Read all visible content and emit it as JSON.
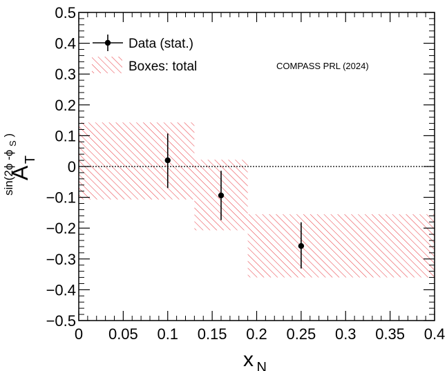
{
  "chart_data": {
    "type": "scatter",
    "xlim": [
      0,
      0.4
    ],
    "ylim": [
      -0.5,
      0.5
    ],
    "x_ticks": [
      "0",
      "0.05",
      "0.1",
      "0.15",
      "0.2",
      "0.25",
      "0.3",
      "0.35",
      "0.4"
    ],
    "y_ticks": [
      "−0.5",
      "−0.4",
      "−0.3",
      "−0.2",
      "−0.1",
      "0",
      "0.1",
      "0.2",
      "0.3",
      "0.4",
      "0.5"
    ],
    "xlabel": {
      "main": "x",
      "sub": "N"
    },
    "ylabel": {
      "main": "A",
      "sub": "T",
      "sup": "sin(2ϕ -ϕ",
      "sup_sub": "S",
      "sup_close": ")"
    },
    "legend": {
      "position": "top-left",
      "entries": [
        {
          "label": "Data (stat.)",
          "kind": "marker-errorbar"
        },
        {
          "label": "Boxes: total",
          "kind": "hatched-box"
        }
      ]
    },
    "annotation": "COMPASS PRL (2024)",
    "zero_line": true,
    "series": [
      {
        "name": "Data (stat.)",
        "color": "#000000",
        "points": [
          {
            "x": 0.1,
            "y": 0.02,
            "err_low": 0.09,
            "err_high": 0.087
          },
          {
            "x": 0.16,
            "y": -0.094,
            "err_low": 0.08,
            "err_high": 0.08
          },
          {
            "x": 0.25,
            "y": -0.258,
            "err_low": 0.073,
            "err_high": 0.077
          }
        ]
      },
      {
        "name": "Boxes: total",
        "color": "#e8333a",
        "boxes": [
          {
            "x0": 0.0,
            "x1": 0.13,
            "y0": -0.107,
            "y1": 0.143
          },
          {
            "x0": 0.13,
            "x1": 0.19,
            "y0": -0.207,
            "y1": 0.022
          },
          {
            "x0": 0.19,
            "x1": 0.4,
            "y0": -0.36,
            "y1": -0.155
          }
        ]
      }
    ]
  }
}
